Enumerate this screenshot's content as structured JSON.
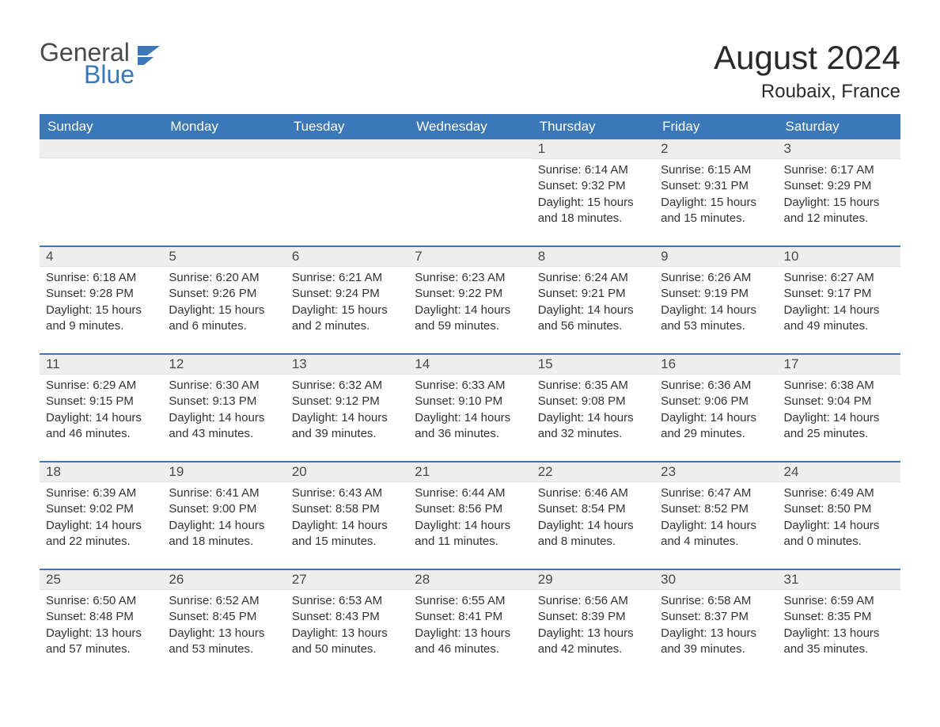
{
  "logo": {
    "general": "General",
    "blue": "Blue"
  },
  "title": "August 2024",
  "location": "Roubaix, France",
  "colors": {
    "header_bg": "#3b78b8",
    "header_text": "#ffffff",
    "daynum_bg": "#eeeeee",
    "body_text": "#333333",
    "divider": "#3b78b8",
    "page_bg": "#ffffff",
    "logo_gray": "#4a4a4a",
    "logo_blue": "#3b78b8"
  },
  "day_headers": [
    "Sunday",
    "Monday",
    "Tuesday",
    "Wednesday",
    "Thursday",
    "Friday",
    "Saturday"
  ],
  "weeks": [
    [
      {
        "day": "",
        "sunrise": "",
        "sunset": "",
        "daylight": ""
      },
      {
        "day": "",
        "sunrise": "",
        "sunset": "",
        "daylight": ""
      },
      {
        "day": "",
        "sunrise": "",
        "sunset": "",
        "daylight": ""
      },
      {
        "day": "",
        "sunrise": "",
        "sunset": "",
        "daylight": ""
      },
      {
        "day": "1",
        "sunrise": "Sunrise: 6:14 AM",
        "sunset": "Sunset: 9:32 PM",
        "daylight": "Daylight: 15 hours and 18 minutes."
      },
      {
        "day": "2",
        "sunrise": "Sunrise: 6:15 AM",
        "sunset": "Sunset: 9:31 PM",
        "daylight": "Daylight: 15 hours and 15 minutes."
      },
      {
        "day": "3",
        "sunrise": "Sunrise: 6:17 AM",
        "sunset": "Sunset: 9:29 PM",
        "daylight": "Daylight: 15 hours and 12 minutes."
      }
    ],
    [
      {
        "day": "4",
        "sunrise": "Sunrise: 6:18 AM",
        "sunset": "Sunset: 9:28 PM",
        "daylight": "Daylight: 15 hours and 9 minutes."
      },
      {
        "day": "5",
        "sunrise": "Sunrise: 6:20 AM",
        "sunset": "Sunset: 9:26 PM",
        "daylight": "Daylight: 15 hours and 6 minutes."
      },
      {
        "day": "6",
        "sunrise": "Sunrise: 6:21 AM",
        "sunset": "Sunset: 9:24 PM",
        "daylight": "Daylight: 15 hours and 2 minutes."
      },
      {
        "day": "7",
        "sunrise": "Sunrise: 6:23 AM",
        "sunset": "Sunset: 9:22 PM",
        "daylight": "Daylight: 14 hours and 59 minutes."
      },
      {
        "day": "8",
        "sunrise": "Sunrise: 6:24 AM",
        "sunset": "Sunset: 9:21 PM",
        "daylight": "Daylight: 14 hours and 56 minutes."
      },
      {
        "day": "9",
        "sunrise": "Sunrise: 6:26 AM",
        "sunset": "Sunset: 9:19 PM",
        "daylight": "Daylight: 14 hours and 53 minutes."
      },
      {
        "day": "10",
        "sunrise": "Sunrise: 6:27 AM",
        "sunset": "Sunset: 9:17 PM",
        "daylight": "Daylight: 14 hours and 49 minutes."
      }
    ],
    [
      {
        "day": "11",
        "sunrise": "Sunrise: 6:29 AM",
        "sunset": "Sunset: 9:15 PM",
        "daylight": "Daylight: 14 hours and 46 minutes."
      },
      {
        "day": "12",
        "sunrise": "Sunrise: 6:30 AM",
        "sunset": "Sunset: 9:13 PM",
        "daylight": "Daylight: 14 hours and 43 minutes."
      },
      {
        "day": "13",
        "sunrise": "Sunrise: 6:32 AM",
        "sunset": "Sunset: 9:12 PM",
        "daylight": "Daylight: 14 hours and 39 minutes."
      },
      {
        "day": "14",
        "sunrise": "Sunrise: 6:33 AM",
        "sunset": "Sunset: 9:10 PM",
        "daylight": "Daylight: 14 hours and 36 minutes."
      },
      {
        "day": "15",
        "sunrise": "Sunrise: 6:35 AM",
        "sunset": "Sunset: 9:08 PM",
        "daylight": "Daylight: 14 hours and 32 minutes."
      },
      {
        "day": "16",
        "sunrise": "Sunrise: 6:36 AM",
        "sunset": "Sunset: 9:06 PM",
        "daylight": "Daylight: 14 hours and 29 minutes."
      },
      {
        "day": "17",
        "sunrise": "Sunrise: 6:38 AM",
        "sunset": "Sunset: 9:04 PM",
        "daylight": "Daylight: 14 hours and 25 minutes."
      }
    ],
    [
      {
        "day": "18",
        "sunrise": "Sunrise: 6:39 AM",
        "sunset": "Sunset: 9:02 PM",
        "daylight": "Daylight: 14 hours and 22 minutes."
      },
      {
        "day": "19",
        "sunrise": "Sunrise: 6:41 AM",
        "sunset": "Sunset: 9:00 PM",
        "daylight": "Daylight: 14 hours and 18 minutes."
      },
      {
        "day": "20",
        "sunrise": "Sunrise: 6:43 AM",
        "sunset": "Sunset: 8:58 PM",
        "daylight": "Daylight: 14 hours and 15 minutes."
      },
      {
        "day": "21",
        "sunrise": "Sunrise: 6:44 AM",
        "sunset": "Sunset: 8:56 PM",
        "daylight": "Daylight: 14 hours and 11 minutes."
      },
      {
        "day": "22",
        "sunrise": "Sunrise: 6:46 AM",
        "sunset": "Sunset: 8:54 PM",
        "daylight": "Daylight: 14 hours and 8 minutes."
      },
      {
        "day": "23",
        "sunrise": "Sunrise: 6:47 AM",
        "sunset": "Sunset: 8:52 PM",
        "daylight": "Daylight: 14 hours and 4 minutes."
      },
      {
        "day": "24",
        "sunrise": "Sunrise: 6:49 AM",
        "sunset": "Sunset: 8:50 PM",
        "daylight": "Daylight: 14 hours and 0 minutes."
      }
    ],
    [
      {
        "day": "25",
        "sunrise": "Sunrise: 6:50 AM",
        "sunset": "Sunset: 8:48 PM",
        "daylight": "Daylight: 13 hours and 57 minutes."
      },
      {
        "day": "26",
        "sunrise": "Sunrise: 6:52 AM",
        "sunset": "Sunset: 8:45 PM",
        "daylight": "Daylight: 13 hours and 53 minutes."
      },
      {
        "day": "27",
        "sunrise": "Sunrise: 6:53 AM",
        "sunset": "Sunset: 8:43 PM",
        "daylight": "Daylight: 13 hours and 50 minutes."
      },
      {
        "day": "28",
        "sunrise": "Sunrise: 6:55 AM",
        "sunset": "Sunset: 8:41 PM",
        "daylight": "Daylight: 13 hours and 46 minutes."
      },
      {
        "day": "29",
        "sunrise": "Sunrise: 6:56 AM",
        "sunset": "Sunset: 8:39 PM",
        "daylight": "Daylight: 13 hours and 42 minutes."
      },
      {
        "day": "30",
        "sunrise": "Sunrise: 6:58 AM",
        "sunset": "Sunset: 8:37 PM",
        "daylight": "Daylight: 13 hours and 39 minutes."
      },
      {
        "day": "31",
        "sunrise": "Sunrise: 6:59 AM",
        "sunset": "Sunset: 8:35 PM",
        "daylight": "Daylight: 13 hours and 35 minutes."
      }
    ]
  ]
}
